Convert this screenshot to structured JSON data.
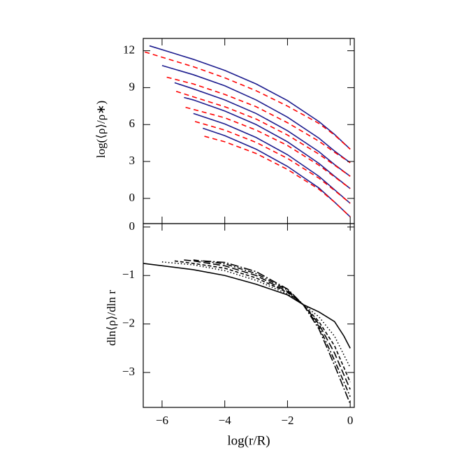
{
  "chart_data": [
    {
      "type": "line",
      "ylabel": "log(⟨ρ⟩/ρ∗)",
      "xlim": [
        -6.6,
        0.13
      ],
      "ylim": [
        -2.05,
        13.0
      ],
      "xticks": [
        -6,
        -4,
        -2,
        0
      ],
      "yticks": [
        12,
        9,
        6,
        3,
        0
      ],
      "series": [
        {
          "color": "#1c1c8e",
          "dash": "none",
          "x": [
            -6.4,
            -5,
            -4,
            -3,
            -2,
            -1,
            -0.5,
            0
          ],
          "values": [
            12.4,
            11.3,
            10.4,
            9.3,
            7.95,
            6.25,
            5.2,
            4.0
          ]
        },
        {
          "color": "#1c1c8e",
          "dash": "none",
          "x": [
            -6,
            -5,
            -4,
            -3,
            -2,
            -1,
            -0.5,
            0
          ],
          "values": [
            10.8,
            10.05,
            9.15,
            8.0,
            6.6,
            4.9,
            3.85,
            2.9
          ]
        },
        {
          "color": "#1c1c8e",
          "dash": "none",
          "x": [
            -5.6,
            -5,
            -4,
            -3,
            -2,
            -1,
            -0.5,
            0
          ],
          "values": [
            9.4,
            8.9,
            8.0,
            6.9,
            5.5,
            3.8,
            2.75,
            1.8
          ]
        },
        {
          "color": "#1c1c8e",
          "dash": "none",
          "x": [
            -5.3,
            -5,
            -4,
            -3,
            -2,
            -1,
            -0.5,
            0
          ],
          "values": [
            8.2,
            8.0,
            7.1,
            6.0,
            4.6,
            2.85,
            1.8,
            0.8
          ]
        },
        {
          "color": "#1c1c8e",
          "dash": "none",
          "x": [
            -5,
            -4,
            -3,
            -2,
            -1,
            -0.5,
            0
          ],
          "values": [
            6.9,
            6.05,
            4.95,
            3.55,
            1.8,
            0.7,
            -0.4
          ]
        },
        {
          "color": "#1c1c8e",
          "dash": "none",
          "x": [
            -4.7,
            -4,
            -3,
            -2,
            -1,
            -0.5,
            0
          ],
          "values": [
            5.7,
            5.1,
            4.0,
            2.6,
            0.85,
            -0.3,
            -1.5
          ]
        },
        {
          "color": "#ff0000",
          "dash": "7,5",
          "x": [
            -6.55,
            -5,
            -4,
            -3,
            -2,
            -1,
            -0.5,
            0
          ],
          "values": [
            11.9,
            10.7,
            9.8,
            8.75,
            7.5,
            6.1,
            5.15,
            4.0
          ]
        },
        {
          "color": "#ff0000",
          "dash": "7,5",
          "x": [
            -5.85,
            -5,
            -4,
            -3,
            -2,
            -1,
            -0.5,
            0
          ],
          "values": [
            9.85,
            9.3,
            8.45,
            7.45,
            6.15,
            4.65,
            3.75,
            2.9
          ]
        },
        {
          "color": "#ff0000",
          "dash": "7,5",
          "x": [
            -5.55,
            -5,
            -4,
            -3,
            -2,
            -1,
            -0.5,
            0
          ],
          "values": [
            8.7,
            8.25,
            7.45,
            6.45,
            5.15,
            3.6,
            2.7,
            1.8
          ]
        },
        {
          "color": "#ff0000",
          "dash": "7,5",
          "x": [
            -5.25,
            -4,
            -3,
            -2,
            -1,
            -0.5,
            0
          ],
          "values": [
            7.4,
            6.55,
            5.55,
            4.3,
            2.7,
            1.75,
            0.8
          ]
        },
        {
          "color": "#ff0000",
          "dash": "7,5",
          "x": [
            -4.95,
            -4,
            -3,
            -2,
            -1,
            -0.5,
            0
          ],
          "values": [
            6.25,
            5.55,
            4.55,
            3.25,
            1.65,
            0.65,
            -0.4
          ]
        },
        {
          "color": "#ff0000",
          "dash": "7,5",
          "x": [
            -4.65,
            -4,
            -3,
            -2,
            -1,
            -0.5,
            0
          ],
          "values": [
            5.05,
            4.6,
            3.65,
            2.35,
            0.75,
            -0.3,
            -1.5
          ]
        }
      ]
    },
    {
      "type": "line",
      "xlabel": "log(r/R)",
      "ylabel": "dln⟨ρ⟩/dln r",
      "xlim": [
        -6.6,
        0.13
      ],
      "ylim": [
        -3.72,
        0.07
      ],
      "xticks": [
        {
          "value": -6,
          "label": "−6"
        },
        {
          "value": -4,
          "label": "−4"
        },
        {
          "value": -2,
          "label": "−2"
        },
        0
      ],
      "yticks": [
        0,
        {
          "value": -1,
          "label": "−1"
        },
        {
          "value": -2,
          "label": "−2"
        },
        {
          "value": -3,
          "label": "−3"
        }
      ],
      "series": [
        {
          "color": "#000000",
          "dash": "none",
          "x": [
            -6.6,
            -5,
            -4,
            -3,
            -2,
            -1.5,
            -1,
            -0.5,
            -0.2,
            0
          ],
          "values": [
            -0.75,
            -0.88,
            -1.0,
            -1.18,
            -1.4,
            -1.6,
            -1.75,
            -1.95,
            -2.25,
            -2.5
          ]
        },
        {
          "color": "#000000",
          "dash": "1.5,3",
          "x": [
            -6,
            -5,
            -4,
            -3,
            -2,
            -1.5,
            -1,
            -0.5,
            0
          ],
          "values": [
            -0.72,
            -0.78,
            -0.9,
            -1.1,
            -1.38,
            -1.6,
            -1.85,
            -2.25,
            -2.9
          ]
        },
        {
          "color": "#000000",
          "dash": "5,3",
          "x": [
            -5.6,
            -5,
            -4,
            -3,
            -2,
            -1.5,
            -1,
            -0.5,
            0
          ],
          "values": [
            -0.7,
            -0.75,
            -0.85,
            -1.05,
            -1.35,
            -1.6,
            -1.95,
            -2.45,
            -3.2
          ]
        },
        {
          "color": "#000000",
          "dash": "10,4",
          "x": [
            -5.3,
            -5,
            -4,
            -3,
            -2,
            -1.5,
            -1,
            -0.5,
            0
          ],
          "values": [
            -0.68,
            -0.7,
            -0.8,
            -1.0,
            -1.33,
            -1.6,
            -2.0,
            -2.6,
            -3.35
          ]
        },
        {
          "color": "#000000",
          "dash": "8,3,2,3",
          "x": [
            -5,
            -4,
            -3,
            -2,
            -1.5,
            -1,
            -0.5,
            0
          ],
          "values": [
            -0.68,
            -0.76,
            -0.96,
            -1.3,
            -1.6,
            -2.05,
            -2.75,
            -3.5
          ]
        },
        {
          "color": "#000000",
          "dash": "12,3,2,3",
          "x": [
            -4.7,
            -4,
            -3,
            -2,
            -1.5,
            -1,
            -0.5,
            0
          ],
          "values": [
            -0.7,
            -0.73,
            -0.92,
            -1.28,
            -1.6,
            -2.1,
            -2.85,
            -3.65
          ]
        }
      ]
    }
  ]
}
